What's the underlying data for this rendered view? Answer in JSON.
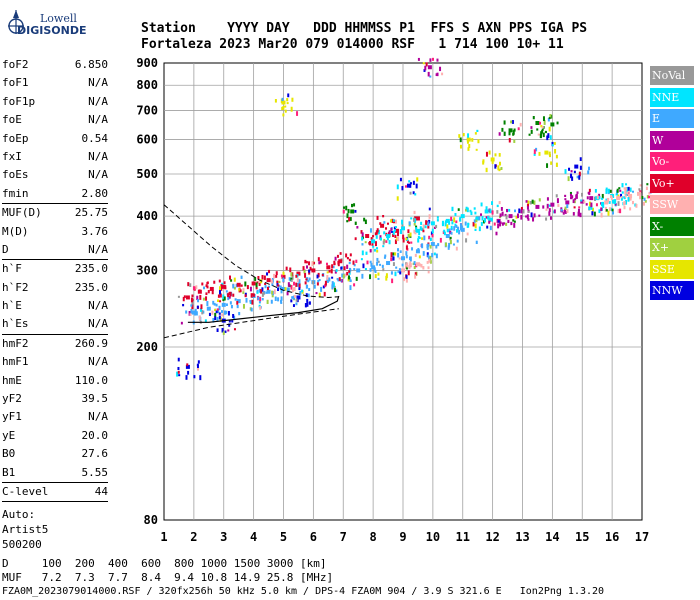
{
  "logo": {
    "top": "Lowell",
    "bottom": "DIGISONDE"
  },
  "header": {
    "row1": "Station    YYYY DAY   DDD HHMMSS P1  FFS S AXN PPS IGA PS",
    "row2": "Fortaleza 2023 Mar20 079 014000 RSF   1 714 100 10+ 11"
  },
  "params": {
    "group1": [
      {
        "k": "foF2",
        "v": "6.850"
      },
      {
        "k": "foF1",
        "v": "N/A"
      },
      {
        "k": "foF1p",
        "v": "N/A"
      },
      {
        "k": "foE",
        "v": "N/A"
      },
      {
        "k": "foEp",
        "v": "0.54"
      },
      {
        "k": "fxI",
        "v": "N/A"
      },
      {
        "k": "foEs",
        "v": "N/A"
      },
      {
        "k": "fmin",
        "v": "2.80"
      }
    ],
    "group2": [
      {
        "k": "MUF(D)",
        "v": "25.75"
      },
      {
        "k": "M(D)",
        "v": "3.76"
      },
      {
        "k": "D",
        "v": "N/A"
      }
    ],
    "group3": [
      {
        "k": "h`F",
        "v": "235.0"
      },
      {
        "k": "h`F2",
        "v": "235.0"
      },
      {
        "k": "h`E",
        "v": "N/A"
      },
      {
        "k": "h`Es",
        "v": "N/A"
      }
    ],
    "group4": [
      {
        "k": "hmF2",
        "v": "260.9"
      },
      {
        "k": "hmF1",
        "v": "N/A"
      },
      {
        "k": "hmE",
        "v": "110.0"
      },
      {
        "k": "yF2",
        "v": "39.5"
      },
      {
        "k": "yF1",
        "v": "N/A"
      },
      {
        "k": "yE",
        "v": "20.0"
      },
      {
        "k": "B0",
        "v": "27.6"
      },
      {
        "k": "B1",
        "v": "5.55"
      }
    ],
    "group5": [
      {
        "k": "C-level",
        "v": "44"
      }
    ],
    "auto": [
      "Auto:",
      "Artist5",
      "500200"
    ]
  },
  "legend": [
    {
      "label": "NoVal",
      "color": "#999999"
    },
    {
      "label": "NNE",
      "color": "#00e5ff"
    },
    {
      "label": "E",
      "color": "#3fa9ff"
    },
    {
      "label": "W",
      "color": "#b0009a"
    },
    {
      "label": "Vo-",
      "color": "#ff1f7a"
    },
    {
      "label": "Vo+",
      "color": "#e0002a"
    },
    {
      "label": "SSW",
      "color": "#ffb0b0"
    },
    {
      "label": "X-",
      "color": "#008000"
    },
    {
      "label": "X+",
      "color": "#a0d040"
    },
    {
      "label": "SSE",
      "color": "#e6e600"
    },
    {
      "label": "NNW",
      "color": "#0000e0"
    }
  ],
  "footer": {
    "line1": "D     100  200  400  600  800 1000 1500 3000 [km]",
    "line2": "MUF   7.2  7.3  7.7  8.4  9.4 10.8 14.9 25.8 [MHz]",
    "line3": "FZA0M_2023079014000.RSF / 320fx256h 50 kHz 5.0 km / DPS-4 FZA0M 904 / 3.9 S 321.6 E   Ion2Png 1.3.20"
  },
  "chart_data": {
    "type": "scatter",
    "xlim": [
      1,
      17
    ],
    "ylim": [
      80,
      900
    ],
    "y_scale": "log",
    "x_ticks": [
      "1",
      "2",
      "3",
      "4",
      "5",
      "6",
      "7",
      "8",
      "9",
      "10",
      "11",
      "12",
      "13",
      "14",
      "15",
      "16",
      "17"
    ],
    "y_ticks": [
      "80",
      "200",
      "300",
      "400",
      "500",
      "600",
      "700",
      "800",
      "900"
    ],
    "grid": true,
    "legend_position": "right",
    "series": [
      {
        "name": "E",
        "points": [
          [
            2.0,
            240
          ],
          [
            2.5,
            245
          ],
          [
            3.0,
            250
          ],
          [
            3.5,
            255
          ],
          [
            4.0,
            262
          ],
          [
            4.5,
            268
          ],
          [
            5.0,
            272
          ],
          [
            5.5,
            278
          ],
          [
            6.0,
            282
          ],
          [
            6.5,
            286
          ],
          [
            7.0,
            292
          ],
          [
            7.5,
            300
          ],
          [
            8.0,
            305
          ],
          [
            8.5,
            312
          ],
          [
            9.0,
            320
          ],
          [
            9.5,
            332
          ],
          [
            10.0,
            345
          ],
          [
            10.5,
            360
          ],
          [
            11.0,
            372
          ]
        ]
      },
      {
        "name": "Vo+",
        "points": [
          [
            1.8,
            260
          ],
          [
            2.2,
            268
          ],
          [
            2.6,
            272
          ],
          [
            3.0,
            275
          ],
          [
            3.5,
            278
          ],
          [
            4.0,
            280
          ],
          [
            4.5,
            285
          ],
          [
            5.0,
            290
          ],
          [
            5.5,
            295
          ],
          [
            6.0,
            300
          ],
          [
            6.5,
            305
          ],
          [
            6.9,
            315
          ],
          [
            7.8,
            360
          ],
          [
            8.3,
            380
          ],
          [
            8.8,
            370
          ],
          [
            9.5,
            395
          ]
        ]
      },
      {
        "name": "W",
        "points": [
          [
            12.2,
            390
          ],
          [
            12.6,
            400
          ],
          [
            13.0,
            410
          ],
          [
            13.5,
            420
          ],
          [
            14.0,
            425
          ],
          [
            14.5,
            430
          ],
          [
            15.0,
            432
          ],
          [
            15.3,
            440
          ],
          [
            9.9,
            880
          ]
        ]
      },
      {
        "name": "NNE",
        "points": [
          [
            8.0,
            350
          ],
          [
            8.5,
            360
          ],
          [
            9.0,
            375
          ],
          [
            9.5,
            370
          ],
          [
            10.0,
            385
          ],
          [
            10.5,
            390
          ],
          [
            11.0,
            400
          ],
          [
            11.5,
            395
          ],
          [
            11.8,
            410
          ],
          [
            15.5,
            440
          ],
          [
            16.0,
            445
          ],
          [
            16.5,
            450
          ]
        ]
      },
      {
        "name": "SSW",
        "points": [
          [
            15.8,
            430
          ],
          [
            16.2,
            440
          ],
          [
            16.6,
            445
          ],
          [
            16.9,
            450
          ],
          [
            9.0,
            300
          ],
          [
            9.5,
            310
          ]
        ]
      },
      {
        "name": "X-",
        "points": [
          [
            12.6,
            630
          ],
          [
            13.5,
            655
          ],
          [
            14.0,
            650
          ],
          [
            7.3,
            410
          ]
        ]
      },
      {
        "name": "SSE",
        "points": [
          [
            13.8,
            560
          ],
          [
            12.0,
            540
          ],
          [
            11.2,
            600
          ],
          [
            5.0,
            730
          ]
        ]
      },
      {
        "name": "NNW",
        "points": [
          [
            1.8,
            180
          ],
          [
            3.0,
            230
          ],
          [
            5.5,
            260
          ],
          [
            9.2,
            470
          ],
          [
            14.8,
            520
          ]
        ]
      }
    ]
  }
}
